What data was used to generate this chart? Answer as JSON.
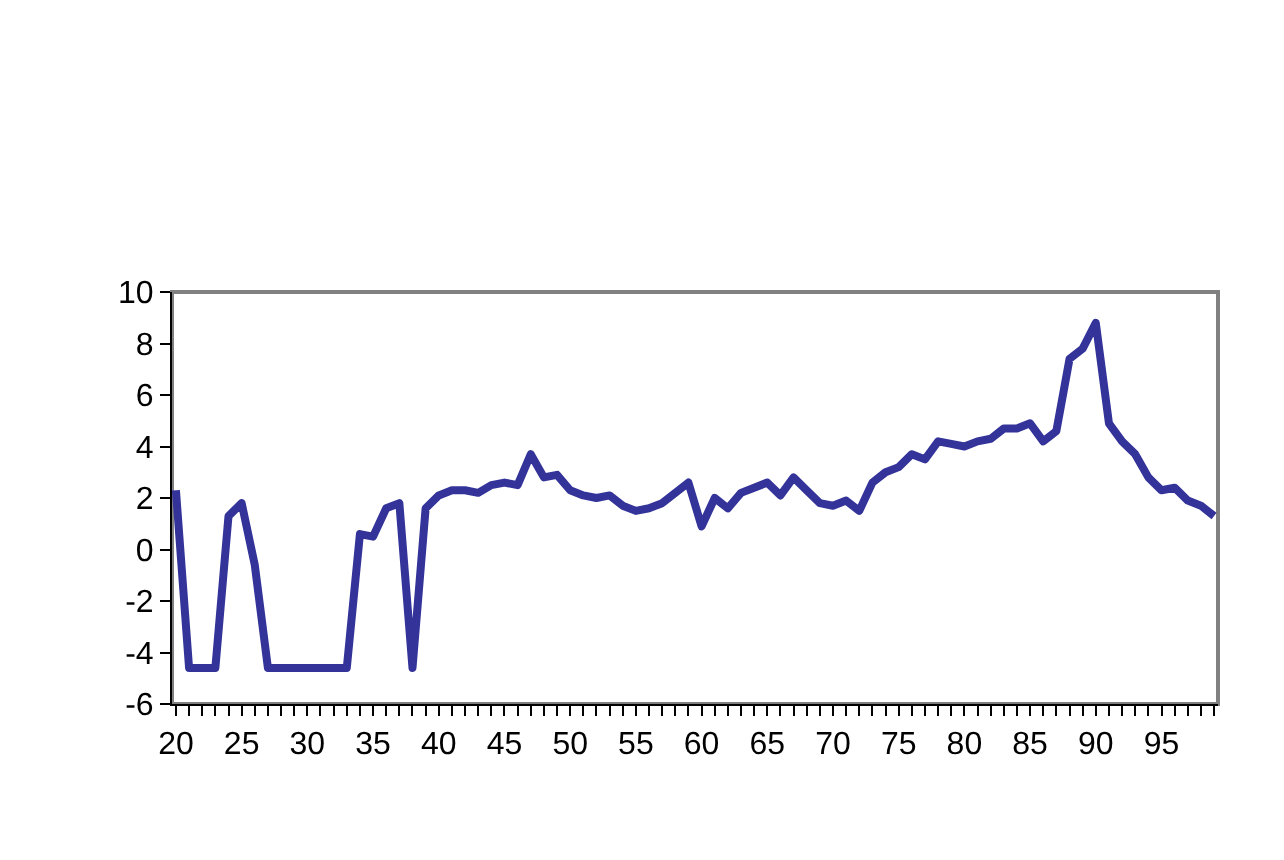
{
  "chart_data": {
    "type": "line",
    "x": [
      20,
      21,
      22,
      23,
      24,
      25,
      26,
      27,
      28,
      29,
      30,
      31,
      32,
      33,
      34,
      35,
      36,
      37,
      38,
      39,
      40,
      41,
      42,
      43,
      44,
      45,
      46,
      47,
      48,
      49,
      50,
      51,
      52,
      53,
      54,
      55,
      56,
      57,
      58,
      59,
      60,
      61,
      62,
      63,
      64,
      65,
      66,
      67,
      68,
      69,
      70,
      71,
      72,
      73,
      74,
      75,
      76,
      77,
      78,
      79,
      80,
      81,
      82,
      83,
      84,
      85,
      86,
      87,
      88,
      89,
      90,
      91,
      92,
      93,
      94,
      95,
      96,
      97,
      98,
      99
    ],
    "series": [
      {
        "color": "#333399",
        "values": [
          2.3,
          -4.6,
          -4.6,
          -4.6,
          1.3,
          1.8,
          -0.6,
          -4.6,
          -4.6,
          -4.6,
          -4.6,
          -4.6,
          -4.6,
          -4.6,
          0.6,
          0.5,
          1.6,
          1.8,
          -4.6,
          1.6,
          2.1,
          2.3,
          2.3,
          2.2,
          2.5,
          2.6,
          2.5,
          3.7,
          2.8,
          2.9,
          2.3,
          2.1,
          2.0,
          2.1,
          1.7,
          1.5,
          1.6,
          1.8,
          2.2,
          2.6,
          0.9,
          2.0,
          1.6,
          2.2,
          2.4,
          2.6,
          2.1,
          2.8,
          2.3,
          1.8,
          1.7,
          1.9,
          1.5,
          2.6,
          3.0,
          3.2,
          3.7,
          3.5,
          4.2,
          4.1,
          4.0,
          4.2,
          4.3,
          4.7,
          4.7,
          4.9,
          4.2,
          4.6,
          7.4,
          7.8,
          8.8,
          4.9,
          4.2,
          3.7,
          2.8,
          2.3,
          2.4,
          1.9,
          1.7,
          1.3
        ]
      }
    ],
    "xlim": [
      19.7,
      99.3
    ],
    "xticks": [
      20,
      {
        "value": 21,
        "label": null
      },
      {
        "value": 22,
        "label": null
      },
      {
        "value": 23,
        "label": null
      },
      {
        "value": 24,
        "label": null
      },
      25,
      {
        "value": 26,
        "label": null
      },
      {
        "value": 27,
        "label": null
      },
      {
        "value": 28,
        "label": null
      },
      {
        "value": 29,
        "label": null
      },
      30,
      {
        "value": 31,
        "label": null
      },
      {
        "value": 32,
        "label": null
      },
      {
        "value": 33,
        "label": null
      },
      {
        "value": 34,
        "label": null
      },
      35,
      {
        "value": 36,
        "label": null
      },
      {
        "value": 37,
        "label": null
      },
      {
        "value": 38,
        "label": null
      },
      {
        "value": 39,
        "label": null
      },
      40,
      {
        "value": 41,
        "label": null
      },
      {
        "value": 42,
        "label": null
      },
      {
        "value": 43,
        "label": null
      },
      {
        "value": 44,
        "label": null
      },
      45,
      {
        "value": 46,
        "label": null
      },
      {
        "value": 47,
        "label": null
      },
      {
        "value": 48,
        "label": null
      },
      {
        "value": 49,
        "label": null
      },
      50,
      {
        "value": 51,
        "label": null
      },
      {
        "value": 52,
        "label": null
      },
      {
        "value": 53,
        "label": null
      },
      {
        "value": 54,
        "label": null
      },
      55,
      {
        "value": 56,
        "label": null
      },
      {
        "value": 57,
        "label": null
      },
      {
        "value": 58,
        "label": null
      },
      {
        "value": 59,
        "label": null
      },
      60,
      {
        "value": 61,
        "label": null
      },
      {
        "value": 62,
        "label": null
      },
      {
        "value": 63,
        "label": null
      },
      {
        "value": 64,
        "label": null
      },
      65,
      {
        "value": 66,
        "label": null
      },
      {
        "value": 67,
        "label": null
      },
      {
        "value": 68,
        "label": null
      },
      {
        "value": 69,
        "label": null
      },
      70,
      {
        "value": 71,
        "label": null
      },
      {
        "value": 72,
        "label": null
      },
      {
        "value": 73,
        "label": null
      },
      {
        "value": 74,
        "label": null
      },
      75,
      {
        "value": 76,
        "label": null
      },
      {
        "value": 77,
        "label": null
      },
      {
        "value": 78,
        "label": null
      },
      {
        "value": 79,
        "label": null
      },
      80,
      {
        "value": 81,
        "label": null
      },
      {
        "value": 82,
        "label": null
      },
      {
        "value": 83,
        "label": null
      },
      {
        "value": 84,
        "label": null
      },
      85,
      {
        "value": 86,
        "label": null
      },
      {
        "value": 87,
        "label": null
      },
      {
        "value": 88,
        "label": null
      },
      {
        "value": 89,
        "label": null
      },
      90,
      {
        "value": 91,
        "label": null
      },
      {
        "value": 92,
        "label": null
      },
      {
        "value": 93,
        "label": null
      },
      {
        "value": 94,
        "label": null
      },
      95,
      {
        "value": 96,
        "label": null
      },
      {
        "value": 97,
        "label": null
      },
      {
        "value": 98,
        "label": null
      },
      {
        "value": 99,
        "label": null
      }
    ],
    "ylim": [
      -6,
      10
    ],
    "yticks": [
      -6,
      -4,
      -2,
      0,
      2,
      4,
      6,
      8,
      10
    ],
    "grid": false,
    "marker": "none",
    "line_style": "solid"
  }
}
